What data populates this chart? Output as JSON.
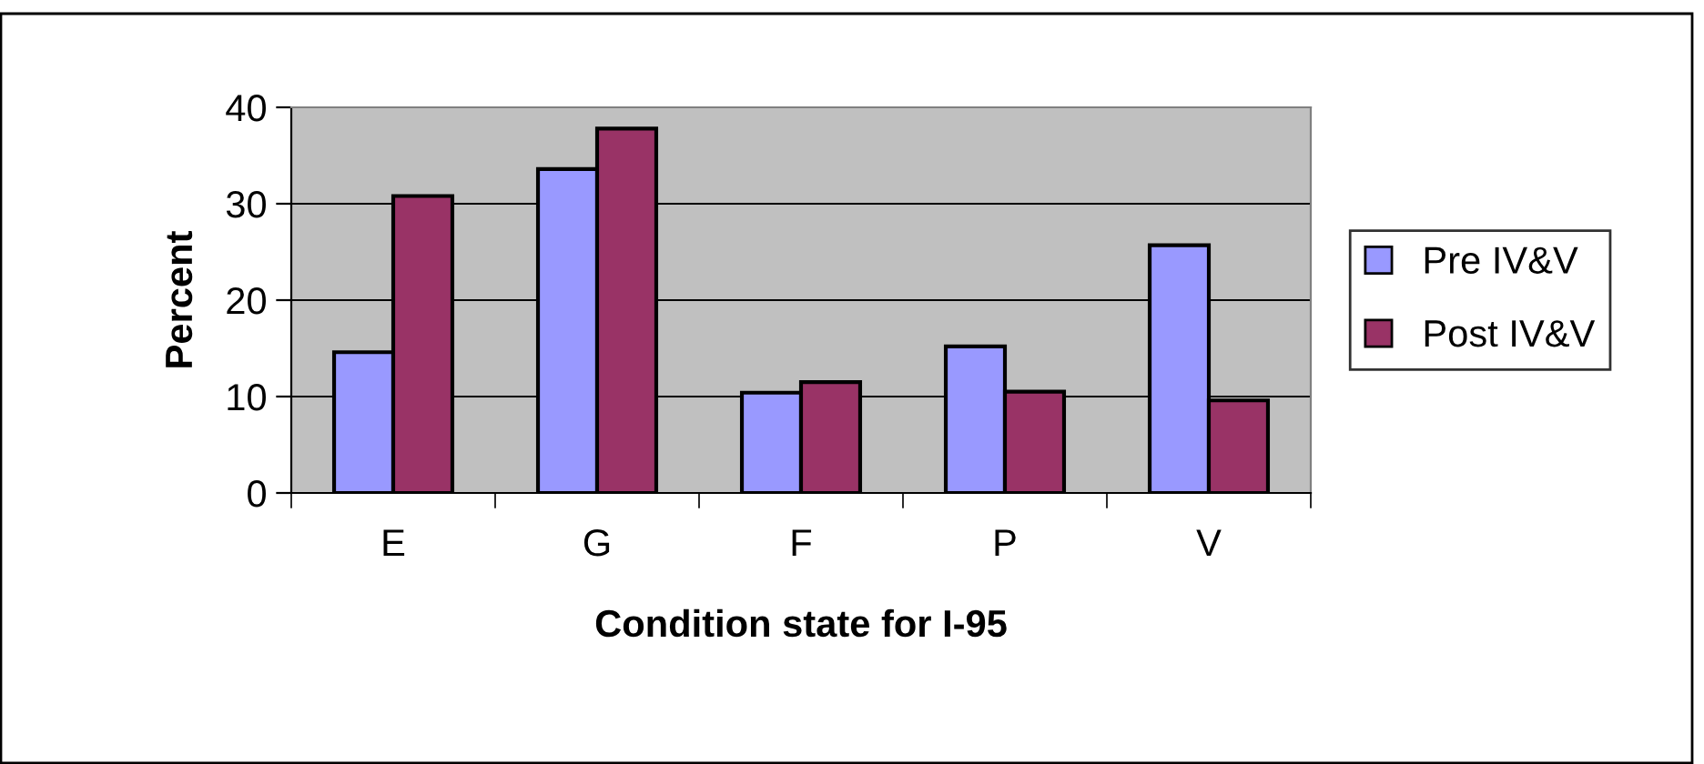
{
  "chart_data": {
    "type": "bar",
    "xlabel": "Condition state for I-95",
    "ylabel": "Percent",
    "categories": [
      "E",
      "G",
      "F",
      "P",
      "V"
    ],
    "series": [
      {
        "name": "Pre IV&V",
        "color": "#9999ff",
        "values": [
          14.6,
          33.6,
          10.4,
          15.2,
          25.7
        ]
      },
      {
        "name": "Post IV&V",
        "color": "#993366",
        "values": [
          30.8,
          37.8,
          11.5,
          10.5,
          9.6
        ]
      }
    ],
    "ylim": [
      0,
      40
    ],
    "yticks": [
      0,
      10,
      20,
      30,
      40
    ],
    "grid": "y",
    "legend": "right"
  }
}
